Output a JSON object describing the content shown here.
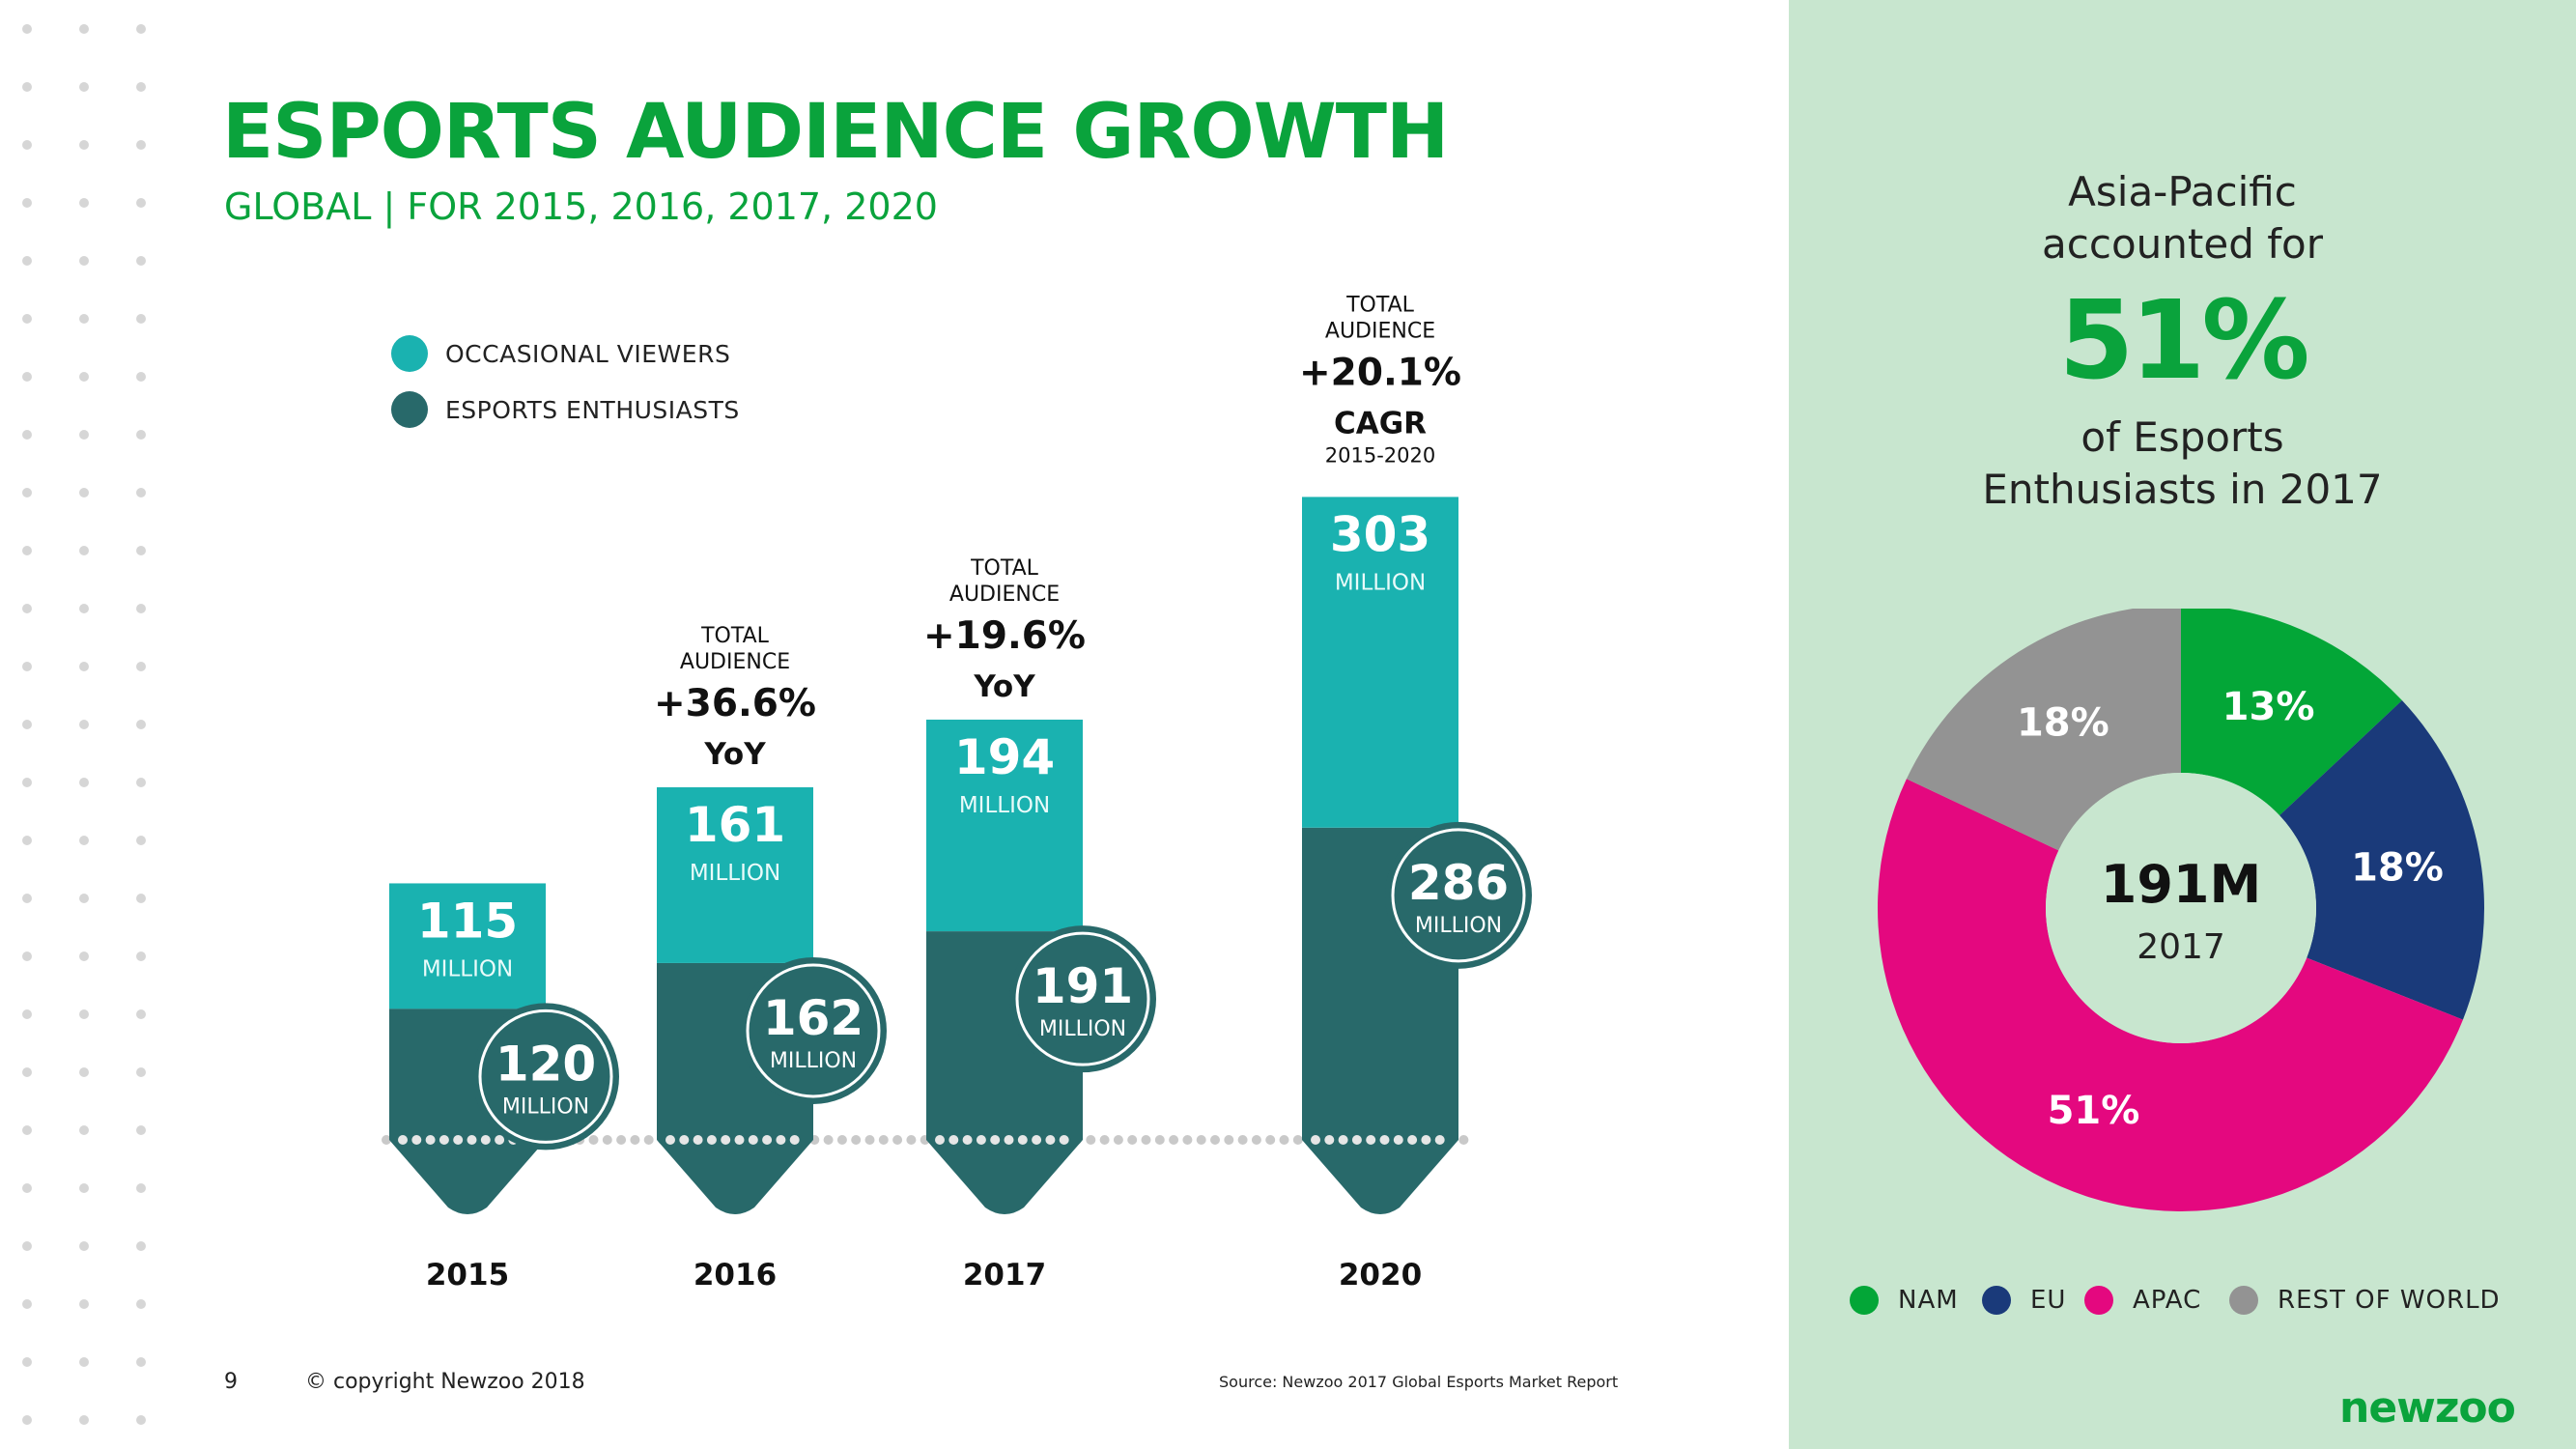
{
  "title": "ESPORTS AUDIENCE GROWTH",
  "subtitle": "GLOBAL | FOR 2015, 2016, 2017, 2020",
  "legend": {
    "occasional": "OCCASIONAL VIEWERS",
    "enthusiasts": "ESPORTS ENTHUSIASTS"
  },
  "colors": {
    "brand_green": "#0aa33c",
    "occasional": "#1ab2b0",
    "enthusiasts": "#28696a",
    "panel_bg": "#c8e6cf",
    "nam": "#03a637",
    "eu": "#1a3a7a",
    "apac": "#e4087f",
    "rest": "#939393"
  },
  "chart_data": [
    {
      "type": "bar",
      "stacked": true,
      "categories": [
        "2015",
        "2016",
        "2017",
        "2020"
      ],
      "unit_label": "MILLION",
      "series": [
        {
          "name": "ESPORTS ENTHUSIASTS",
          "values": [
            120,
            162,
            191,
            286
          ]
        },
        {
          "name": "OCCASIONAL VIEWERS",
          "values": [
            115,
            161,
            194,
            303
          ]
        }
      ],
      "annotations": [
        {
          "category": "2016",
          "header": "TOTAL AUDIENCE",
          "value": "+36.6%",
          "label": "YoY",
          "sub": ""
        },
        {
          "category": "2017",
          "header": "TOTAL AUDIENCE",
          "value": "+19.6%",
          "label": "YoY",
          "sub": ""
        },
        {
          "category": "2020",
          "header": "TOTAL AUDIENCE",
          "value": "+20.1%",
          "label": "CAGR",
          "sub": "2015-2020"
        }
      ],
      "legend_position": "top-left"
    },
    {
      "type": "pie",
      "donut": true,
      "center_value": "191M",
      "center_label": "2017",
      "slices": [
        {
          "name": "NAM",
          "value": 13,
          "label": "13%"
        },
        {
          "name": "EU",
          "value": 18,
          "label": "18%"
        },
        {
          "name": "APAC",
          "value": 51,
          "label": "51%"
        },
        {
          "name": "REST OF WORLD",
          "value": 18,
          "label": "18%"
        }
      ],
      "legend_position": "bottom"
    }
  ],
  "side": {
    "line1": "Asia-Pacific",
    "line2": "accounted for",
    "pct": "51%",
    "line3": "of Esports",
    "line4": "Enthusiasts in 2017"
  },
  "footer": {
    "page": "9",
    "copyright": "© copyright Newzoo 2018",
    "source": "Source: Newzoo 2017 Global Esports Market Report",
    "brand": "newzoo"
  }
}
